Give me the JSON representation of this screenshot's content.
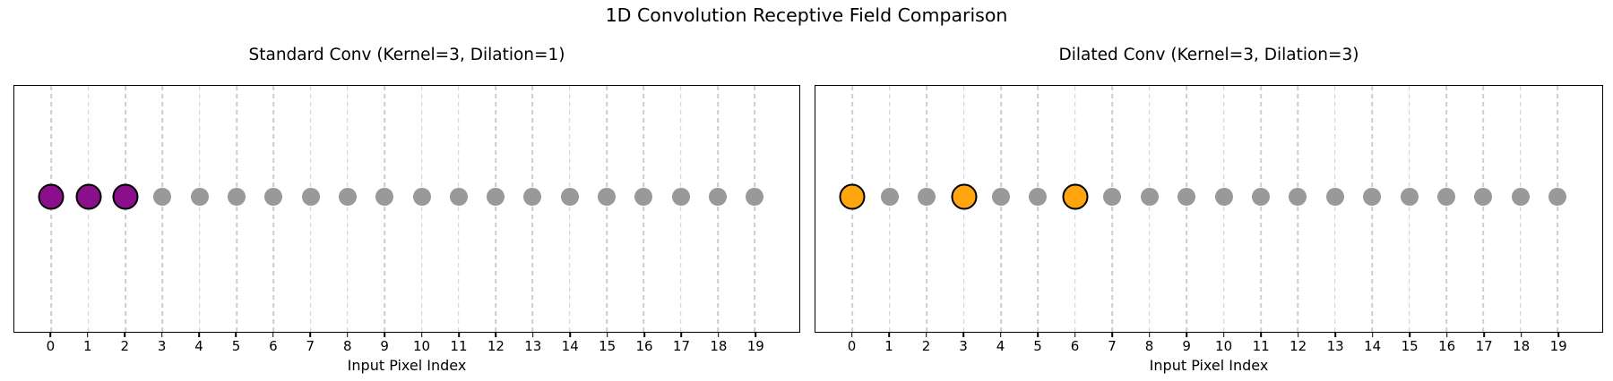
{
  "figure": {
    "title": "1D Convolution Receptive Field Comparison",
    "background_color": "#ffffff",
    "text_color": "#000000",
    "grid_color": "#cdcdcd",
    "axis_color": "#000000"
  },
  "chart_data": [
    {
      "type": "scatter",
      "title": "Standard Conv (Kernel=3, Dilation=1)",
      "xlabel": "Input Pixel Index",
      "kernel": 3,
      "dilation": 1,
      "x": [
        0,
        1,
        2,
        3,
        4,
        5,
        6,
        7,
        8,
        9,
        10,
        11,
        12,
        13,
        14,
        15,
        16,
        17,
        18,
        19
      ],
      "highlighted_x": [
        0,
        1,
        2
      ],
      "highlight_color": "#8B0E8B",
      "highlight_edge_color": "#000000",
      "point_color": "#999999",
      "xlim": [
        -1.0,
        20.2
      ],
      "grid": true,
      "point_size": 20,
      "highlight_size": 29
    },
    {
      "type": "scatter",
      "title": "Dilated Conv (Kernel=3, Dilation=3)",
      "xlabel": "Input Pixel Index",
      "kernel": 3,
      "dilation": 3,
      "x": [
        0,
        1,
        2,
        3,
        4,
        5,
        6,
        7,
        8,
        9,
        10,
        11,
        12,
        13,
        14,
        15,
        16,
        17,
        18,
        19
      ],
      "highlighted_x": [
        0,
        3,
        6
      ],
      "highlight_color": "#FFA510",
      "highlight_edge_color": "#000000",
      "point_color": "#999999",
      "xlim": [
        -1.0,
        20.2
      ],
      "grid": true,
      "point_size": 20,
      "highlight_size": 29
    }
  ]
}
